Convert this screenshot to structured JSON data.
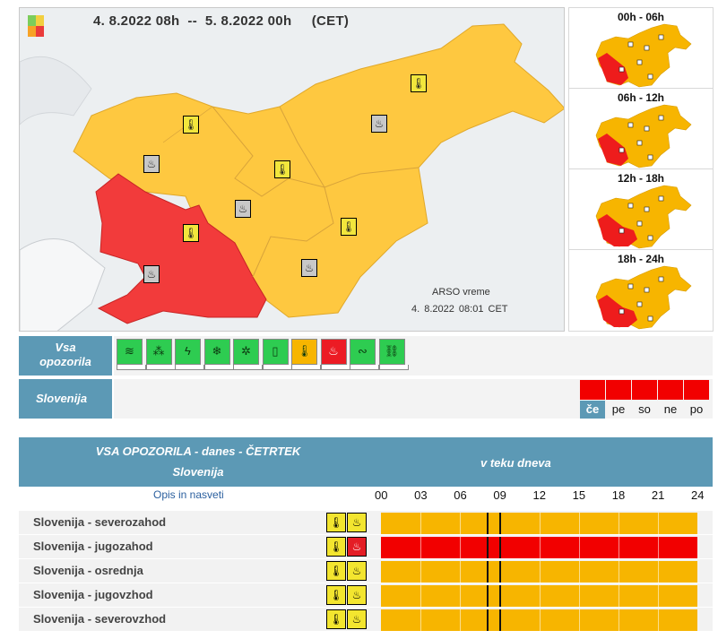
{
  "map": {
    "date_range": "4. 8.2022 08h  --  5. 8.2022 00h     (CET)",
    "source": "ARSO vreme",
    "stamp": "4. 8.2022   08:01 CET",
    "colors": {
      "yellow_warning": "#ffc93a",
      "red_warning": "#f23b3b",
      "background": "#eceff1"
    }
  },
  "mini_maps": [
    {
      "label": "00h - 06h"
    },
    {
      "label": "06h - 12h"
    },
    {
      "label": "12h - 18h"
    },
    {
      "label": "18h - 24h"
    }
  ],
  "warning_types": {
    "label_line1": "Vsa",
    "label_line2": "opozorila",
    "icons": [
      {
        "name": "wind-icon",
        "state": "green"
      },
      {
        "name": "rain-icon",
        "state": "green"
      },
      {
        "name": "thunderstorm-icon",
        "state": "green"
      },
      {
        "name": "snow-icon",
        "state": "green"
      },
      {
        "name": "snow-ice-icon",
        "state": "green"
      },
      {
        "name": "fog-icon",
        "state": "green"
      },
      {
        "name": "high-temperature-icon",
        "state": "yellow"
      },
      {
        "name": "fire-danger-icon",
        "state": "red"
      },
      {
        "name": "coastal-icon",
        "state": "green"
      },
      {
        "name": "avalanche-icon",
        "state": "green"
      }
    ]
  },
  "country": {
    "label": "Slovenija",
    "days": [
      {
        "label": "če",
        "active": true
      },
      {
        "label": "pe",
        "active": false
      },
      {
        "label": "so",
        "active": false
      },
      {
        "label": "ne",
        "active": false
      },
      {
        "label": "po",
        "active": false
      }
    ]
  },
  "table": {
    "title": "VSA OPOZORILA - danes - ČETRTEK",
    "subtitle": "Slovenija",
    "during": "v teku dneva",
    "opis_link": "Opis in nasveti",
    "hours": [
      "00",
      "03",
      "06",
      "09",
      "12",
      "15",
      "18",
      "21",
      "24"
    ],
    "now_hour": 8,
    "regions": [
      {
        "name": "Slovenija - severozahod",
        "level": "yellow",
        "fire": "yellow"
      },
      {
        "name": "Slovenija - jugozahod",
        "level": "red",
        "fire": "red"
      },
      {
        "name": "Slovenija - osrednja",
        "level": "yellow",
        "fire": "yellow"
      },
      {
        "name": "Slovenija - jugovzhod",
        "level": "yellow",
        "fire": "yellow"
      },
      {
        "name": "Slovenija - severovzhod",
        "level": "yellow",
        "fire": "yellow"
      }
    ]
  }
}
